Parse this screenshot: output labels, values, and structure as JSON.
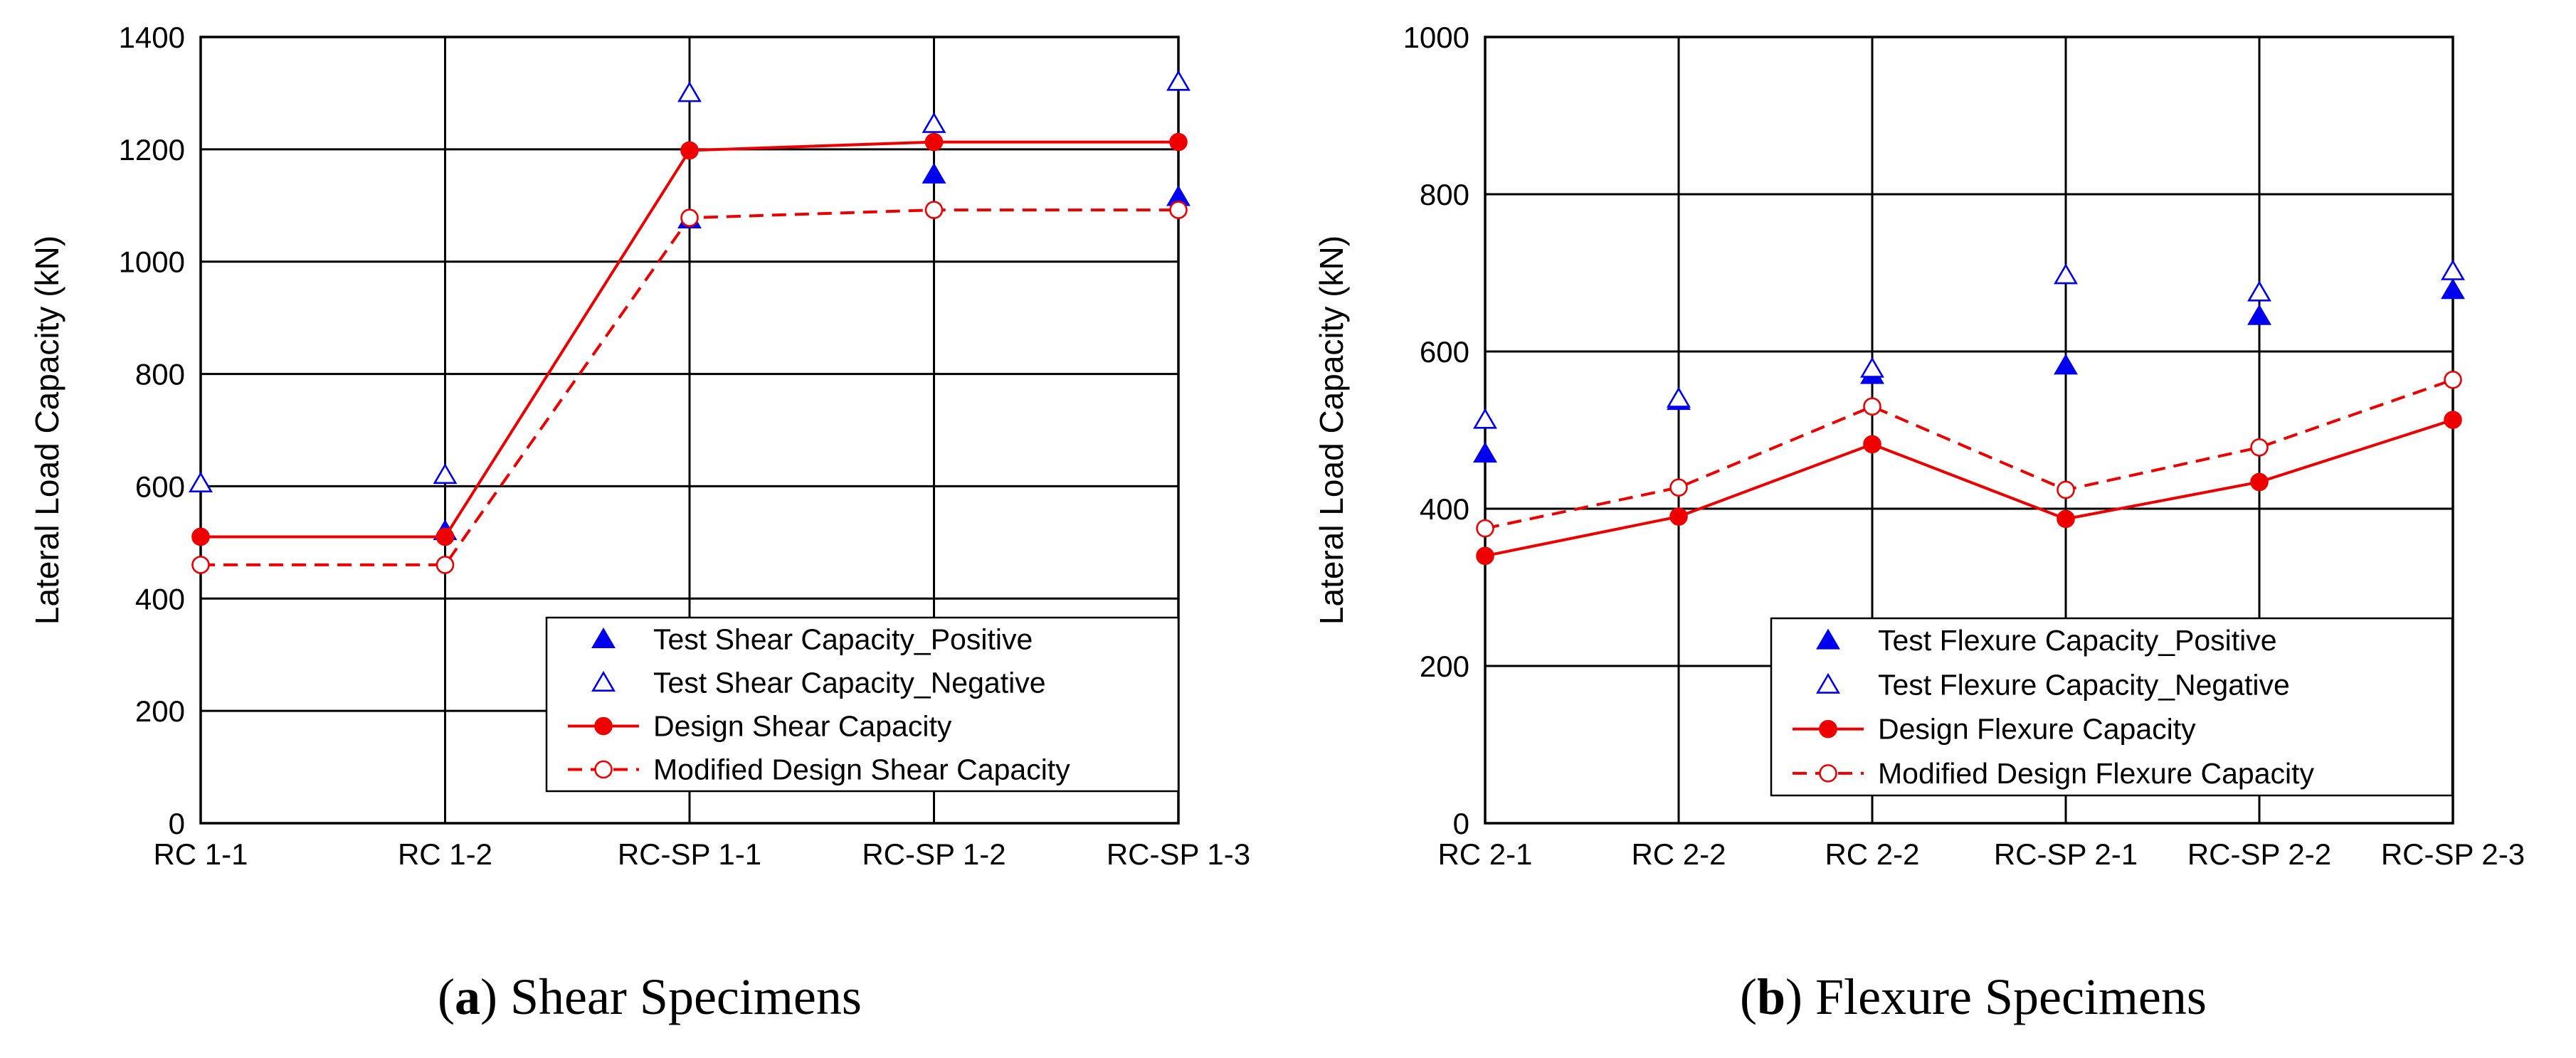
{
  "chart_data": [
    {
      "type": "line",
      "caption": {
        "letter": "a",
        "text": "Shear Specimens"
      },
      "ylabel": "Lateral Load Capacity (kN)",
      "xlabel": "",
      "ylim": [
        0,
        1400
      ],
      "yticks": [
        0,
        200,
        400,
        600,
        800,
        1000,
        1200,
        1400
      ],
      "categories": [
        "RC 1-1",
        "RC 1-2",
        "RC-SP 1-1",
        "RC-SP 1-2",
        "RC-SP 1-3"
      ],
      "grid": true,
      "legend_position": "bottom-right",
      "series": [
        {
          "name": "Test Shear Capacity_Positive",
          "marker": "triangle-filled",
          "line": "none",
          "color": "#0000ee",
          "values": [
            null,
            520,
            1075,
            1155,
            1115
          ]
        },
        {
          "name": "Test Shear Capacity_Negative",
          "marker": "triangle-open",
          "line": "none",
          "color": "#0000ee",
          "values": [
            605,
            620,
            1300,
            1245,
            1320
          ]
        },
        {
          "name": "Design Shear Capacity",
          "marker": "circle-filled",
          "line": "solid",
          "color": "#ee0000",
          "values": [
            510,
            510,
            1198,
            1213,
            1213
          ]
        },
        {
          "name": "Modified Design Shear Capacity",
          "marker": "circle-open",
          "line": "dashed",
          "color": "#ee0000",
          "values": [
            460,
            460,
            1078,
            1092,
            1092
          ]
        }
      ]
    },
    {
      "type": "line",
      "caption": {
        "letter": "b",
        "text": "Flexure Specimens"
      },
      "ylabel": "Lateral Load Capacity (kN)",
      "xlabel": "",
      "ylim": [
        0,
        1000
      ],
      "yticks": [
        0,
        200,
        400,
        600,
        800,
        1000
      ],
      "categories": [
        "RC 2-1",
        "RC 2-2",
        "RC 2-2",
        "RC-SP 2-1",
        "RC-SP 2-2",
        "RC-SP 2-3"
      ],
      "grid": true,
      "legend_position": "bottom-right",
      "series": [
        {
          "name": "Test Flexure Capacity_Positive",
          "marker": "triangle-filled",
          "line": "none",
          "color": "#0000ee",
          "values": [
            470,
            537,
            570,
            582,
            645,
            678
          ]
        },
        {
          "name": "Test Flexure Capacity_Negative",
          "marker": "triangle-open",
          "line": "none",
          "color": "#0000ee",
          "values": [
            513,
            540,
            578,
            697,
            675,
            702
          ]
        },
        {
          "name": "Design Flexure Capacity",
          "marker": "circle-filled",
          "line": "solid",
          "color": "#ee0000",
          "values": [
            340,
            390,
            482,
            387,
            434,
            513
          ]
        },
        {
          "name": "Modified Design Flexure Capacity",
          "marker": "circle-open",
          "line": "dashed",
          "color": "#ee0000",
          "values": [
            375,
            427,
            530,
            424,
            478,
            564
          ]
        }
      ]
    }
  ]
}
